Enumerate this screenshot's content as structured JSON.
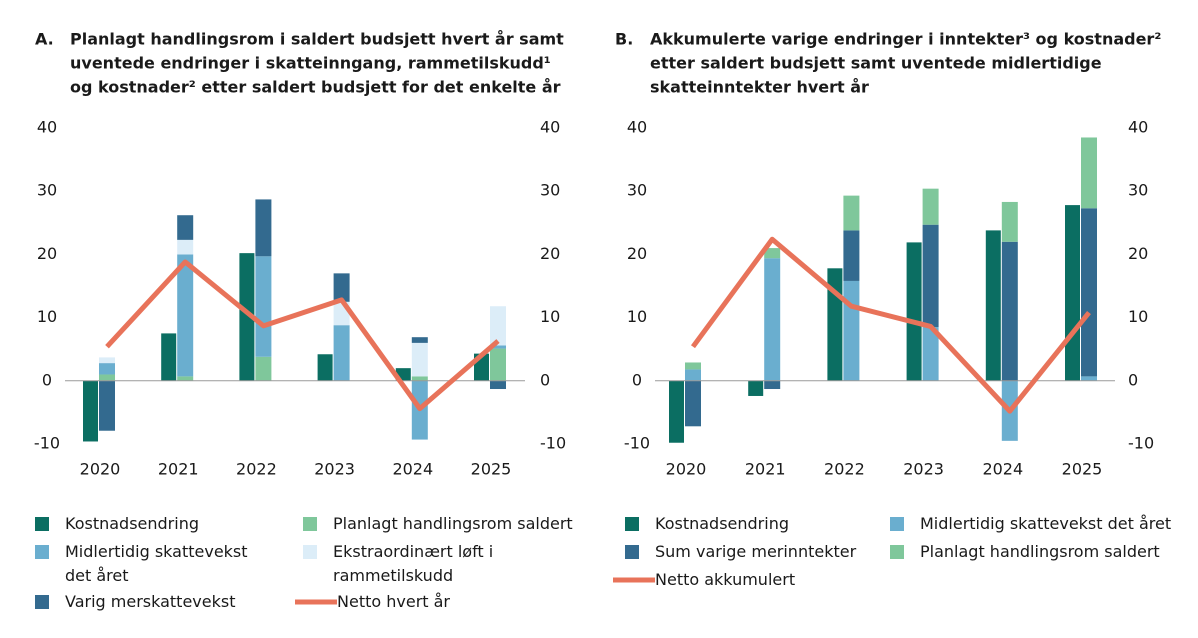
{
  "chart_data": [
    {
      "type": "bar",
      "panel": "A.",
      "title": [
        "Planlagt handlingsrom i saldert budsjett hvert år samt",
        "uventede endringer i skatteinngang, rammetilskudd¹",
        "og kostnader² etter saldert budsjett for det enkelte år"
      ],
      "categories": [
        "2020",
        "2021",
        "2022",
        "2023",
        "2024",
        "2025"
      ],
      "ylim": [
        -10,
        40
      ],
      "yticks": [
        -10,
        0,
        10,
        20,
        30,
        40
      ],
      "y2lim": [
        -10,
        40
      ],
      "y2ticks": [
        -10,
        0,
        10,
        20,
        30,
        40
      ],
      "series": [
        {
          "name": "Kostnadsendring",
          "color": "#0b6e62",
          "values": [
            -9.6,
            7.5,
            20.2,
            4.2,
            2.0,
            4.3
          ]
        },
        {
          "name": "Planlagt handlingsrom saldert",
          "color": "#7fc79b",
          "values": [
            1.0,
            0.7,
            3.8,
            0,
            0.7,
            5.1
          ]
        },
        {
          "name": "Midlertidig skattevekst det året",
          "color": "#6aaecf",
          "values": [
            1.8,
            19.3,
            15.9,
            8.8,
            -9.3,
            0.5
          ]
        },
        {
          "name": "Ekstraordinært løft i rammetilskudd",
          "color": "#dcedf8",
          "values": [
            0.9,
            2.3,
            0,
            3.7,
            5.3,
            6.2
          ]
        },
        {
          "name": "Varig merskattevekst",
          "color": "#336a8f",
          "values": [
            -7.9,
            3.9,
            9.0,
            4.5,
            0.9,
            -1.3
          ]
        },
        {
          "name": "Netto hvert år",
          "type": "line",
          "color": "#e8735a",
          "values": [
            5.4,
            18.8,
            8.7,
            12.8,
            -4.4,
            6.3
          ]
        }
      ]
    },
    {
      "type": "bar",
      "panel": "B.",
      "title": [
        "Akkumulerte varige endringer i inntekter³ og kostnader²",
        "etter saldert  budsjett samt uventede midlertidige",
        "skatteinntekter hvert år"
      ],
      "categories": [
        "2020",
        "2021",
        "2022",
        "2023",
        "2024",
        "2025"
      ],
      "ylim": [
        -10,
        40
      ],
      "yticks": [
        -10,
        0,
        10,
        20,
        30,
        40
      ],
      "y2lim": [
        -10,
        40
      ],
      "y2ticks": [
        -10,
        0,
        10,
        20,
        30,
        40
      ],
      "series": [
        {
          "name": "Kostnadsendring",
          "color": "#0b6e62",
          "values": [
            -9.8,
            -2.4,
            17.8,
            21.9,
            23.8,
            27.8
          ]
        },
        {
          "name": "Midlertidig skattevekst det året",
          "color": "#6aaecf",
          "values": [
            1.8,
            19.4,
            15.8,
            8.5,
            -9.5,
            0.7
          ]
        },
        {
          "name": "Sum varige merinntekter",
          "color": "#336a8f",
          "values": [
            -7.2,
            -1.3,
            8.0,
            16.2,
            22.0,
            26.6
          ]
        },
        {
          "name": "Planlagt handlingsrom saldert",
          "color": "#7fc79b",
          "values": [
            1.1,
            1.6,
            5.5,
            5.7,
            6.3,
            11.2
          ]
        },
        {
          "name": "Netto akkumulert",
          "type": "line",
          "color": "#e8735a",
          "values": [
            5.4,
            22.4,
            11.8,
            8.6,
            -4.8,
            10.8
          ]
        }
      ]
    }
  ]
}
